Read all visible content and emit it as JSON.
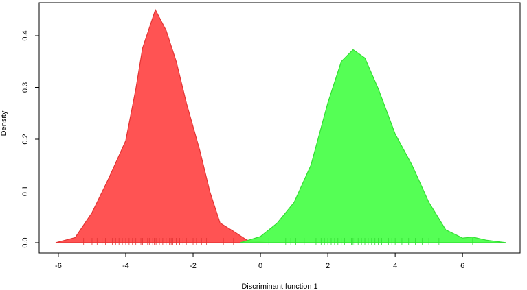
{
  "chart_data": {
    "type": "density",
    "xlabel": "Discriminant function 1",
    "ylabel": "Density",
    "xlim": [
      -6.57,
      7.71
    ],
    "ylim": [
      -0.0199,
      0.4636
    ],
    "xticks": [
      -6,
      -4,
      -2,
      0,
      2,
      4,
      6
    ],
    "yticks": [
      {
        "value": 0,
        "label": "0.0"
      },
      0.1,
      0.2,
      0.3,
      0.4
    ],
    "series": [
      {
        "color": "#ff4a4a",
        "stroke": "#e23333",
        "x": [
          -6.08,
          -5.5,
          -5.0,
          -4.5,
          -4.0,
          -3.7,
          -3.5,
          -3.12,
          -2.8,
          -2.5,
          -2.2,
          -1.8,
          -1.5,
          -1.2,
          -0.8,
          -0.4,
          0.2
        ],
        "values": [
          0,
          0.01,
          0.058,
          0.125,
          0.197,
          0.297,
          0.376,
          0.45,
          0.41,
          0.35,
          0.27,
          0.178,
          0.098,
          0.038,
          0.022,
          0.005,
          0
        ],
        "rug": [
          -5.25,
          -5.0,
          -4.85,
          -4.7,
          -4.6,
          -4.5,
          -4.4,
          -4.3,
          -4.2,
          -4.1,
          -4.0,
          -3.9,
          -3.8,
          -3.7,
          -3.6,
          -3.55,
          -3.5,
          -3.4,
          -3.35,
          -3.3,
          -3.2,
          -3.15,
          -3.1,
          -3.0,
          -2.95,
          -2.9,
          -2.8,
          -2.7,
          -2.65,
          -2.6,
          -2.5,
          -2.4,
          -2.3,
          -2.2,
          -2.0,
          -1.9,
          -1.75,
          -1.6,
          -1.1,
          -0.8
        ]
      },
      {
        "color": "#4cff4c",
        "stroke": "#33dd33",
        "x": [
          -0.6,
          0,
          0.5,
          1.0,
          1.5,
          2.0,
          2.4,
          2.75,
          3.1,
          3.5,
          4.0,
          4.5,
          5.0,
          5.5,
          6.0,
          6.3,
          6.7,
          7.3
        ],
        "values": [
          0,
          0.012,
          0.038,
          0.078,
          0.15,
          0.27,
          0.35,
          0.373,
          0.357,
          0.297,
          0.21,
          0.15,
          0.078,
          0.025,
          0.009,
          0.011,
          0.005,
          0
        ],
        "rug": [
          0.25,
          0.75,
          0.9,
          1.05,
          1.3,
          1.5,
          1.65,
          1.8,
          1.9,
          2.0,
          2.1,
          2.2,
          2.3,
          2.4,
          2.5,
          2.6,
          2.7,
          2.75,
          2.8,
          2.9,
          3.0,
          3.1,
          3.2,
          3.3,
          3.4,
          3.5,
          3.6,
          3.7,
          3.8,
          3.9,
          4.0,
          4.2,
          4.4,
          4.6,
          4.8,
          5.0,
          5.3,
          6.3
        ]
      }
    ]
  }
}
